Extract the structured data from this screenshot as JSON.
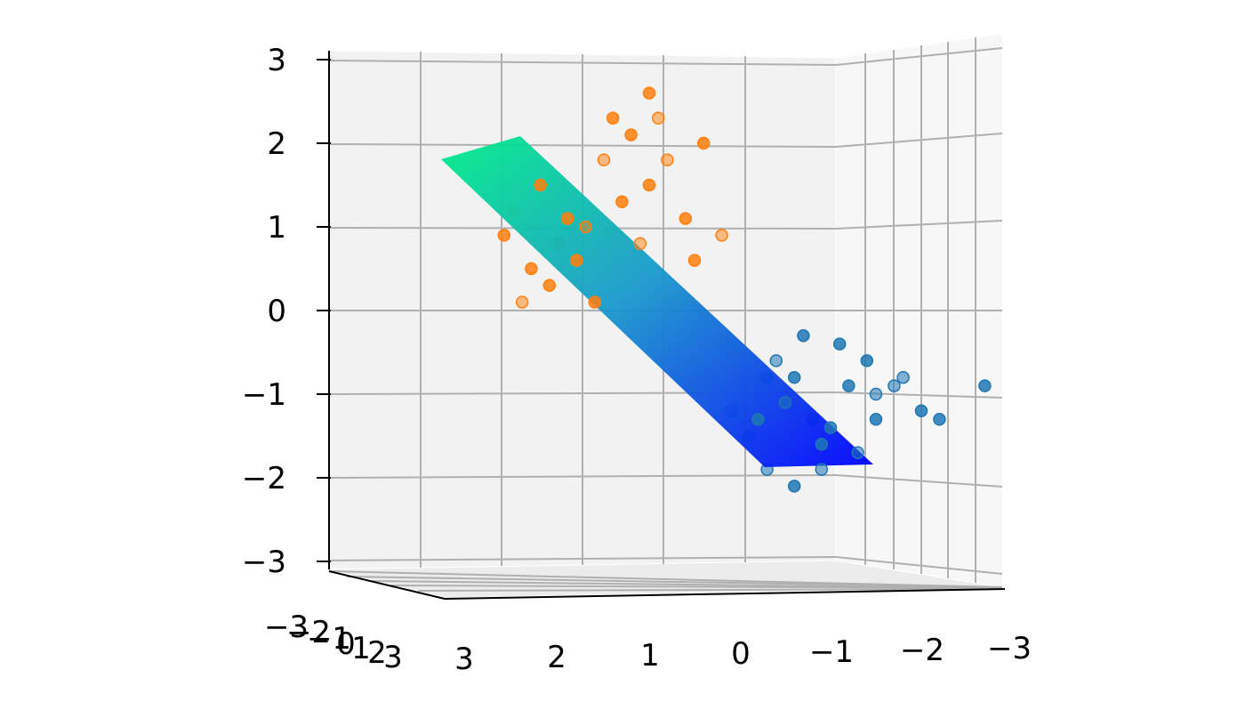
{
  "chart_data": {
    "type": "scatter",
    "projection": "3d",
    "title": "",
    "xlabel": "",
    "ylabel": "",
    "zlabel": "",
    "grid": true,
    "legend": "none",
    "xlim": [
      -3,
      3
    ],
    "ylim": [
      -3,
      3
    ],
    "zlim": [
      -3,
      3
    ],
    "x_ticks": [
      "3",
      "2",
      "1",
      "0",
      "−1",
      "−2",
      "−3"
    ],
    "y_ticks": [
      "−3",
      "−2",
      "−1",
      "0",
      "1",
      "2",
      "3"
    ],
    "z_ticks": [
      "−3",
      "−2",
      "−1",
      "0",
      "1",
      "2",
      "3"
    ],
    "colors": {
      "class_a": "#1f77b4",
      "class_b": "#ff7f0e",
      "plane_high": "#00ee88",
      "plane_low": "#0000ff"
    },
    "series": [
      {
        "points": [
          [
            -1.5,
            0,
            -1.0
          ],
          [
            -1.2,
            0,
            -0.9
          ],
          [
            -0.8,
            0,
            -1.3
          ],
          [
            -0.4,
            0,
            -0.6
          ],
          [
            -0.6,
            0,
            -0.8
          ],
          [
            -1.0,
            0,
            -1.4
          ],
          [
            -0.3,
            0,
            -1.9
          ],
          [
            -0.9,
            0,
            -1.6
          ],
          [
            -1.1,
            0,
            -0.4
          ],
          [
            -0.5,
            0,
            -1.1
          ],
          [
            -1.4,
            0,
            -0.6
          ],
          [
            -0.2,
            0,
            -1.3
          ],
          [
            -1.7,
            0,
            -0.9
          ],
          [
            -2.0,
            0,
            -1.2
          ],
          [
            -0.7,
            0,
            -0.3
          ],
          [
            -1.3,
            0,
            -1.7
          ],
          [
            -0.1,
            0,
            -1.5
          ],
          [
            -0.6,
            0,
            -2.1
          ],
          [
            -1.8,
            0,
            -0.8
          ],
          [
            -2.2,
            0,
            -1.3
          ],
          [
            -2.7,
            0,
            -0.9
          ],
          [
            -0.9,
            0,
            -1.9
          ],
          [
            -0.3,
            0,
            -0.8
          ],
          [
            -1.5,
            0,
            -1.3
          ],
          [
            0.1,
            0,
            -1.2
          ]
        ]
      },
      {
        "points": [
          [
            2.5,
            0,
            1.2
          ],
          [
            2.2,
            0,
            1.5
          ],
          [
            2.0,
            0,
            0.8
          ],
          [
            1.7,
            0,
            1.0
          ],
          [
            2.3,
            0,
            0.5
          ],
          [
            2.1,
            0,
            0.3
          ],
          [
            1.5,
            0,
            1.8
          ],
          [
            1.2,
            0,
            2.1
          ],
          [
            1.0,
            0,
            1.5
          ],
          [
            0.9,
            0,
            2.3
          ],
          [
            1.3,
            0,
            1.3
          ],
          [
            1.8,
            0,
            0.6
          ],
          [
            2.4,
            0,
            0.1
          ],
          [
            1.6,
            0,
            0.1
          ],
          [
            0.6,
            0,
            1.1
          ],
          [
            0.2,
            0,
            0.9
          ],
          [
            0.4,
            0,
            2.0
          ],
          [
            1.4,
            0,
            2.3
          ],
          [
            0.8,
            0,
            1.8
          ],
          [
            1.9,
            0,
            1.1
          ],
          [
            2.6,
            0,
            0.9
          ],
          [
            1.1,
            0,
            0.8
          ],
          [
            0.5,
            0,
            0.6
          ],
          [
            1.0,
            0,
            2.6
          ]
        ]
      }
    ],
    "surface": {
      "type": "plane",
      "corners_z": [
        1.8,
        2.1,
        -1.9,
        -1.9
      ]
    }
  }
}
